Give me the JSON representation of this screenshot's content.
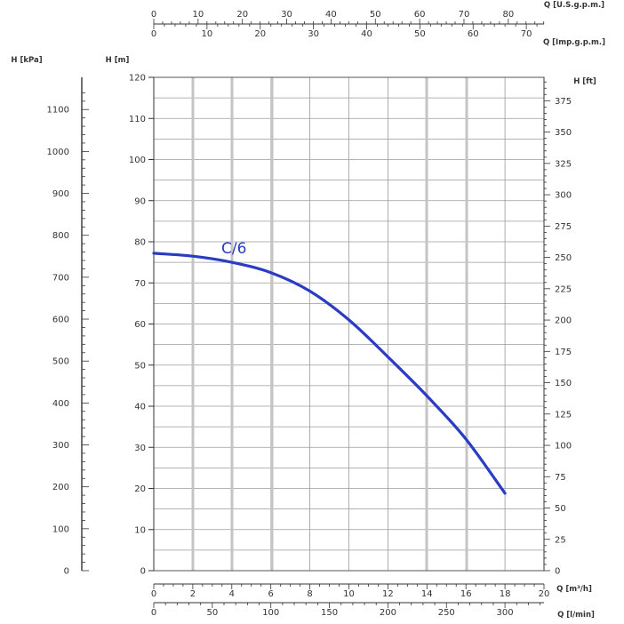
{
  "chart_data": {
    "type": "line",
    "x": [
      0,
      2,
      4,
      6,
      8,
      10,
      12,
      14,
      16,
      18
    ],
    "series": [
      {
        "name": "C/6",
        "values": [
          77.2,
          76.5,
          75.0,
          72.5,
          68.0,
          61.0,
          52.0,
          42.5,
          32.0,
          18.8
        ],
        "color": "#2a3bc4"
      }
    ],
    "xlim": [
      0,
      20
    ],
    "ylim": [
      0,
      120
    ],
    "grid": true,
    "axes": {
      "x_bottom": {
        "label": "Q [m³/h]",
        "range": [
          0,
          20
        ],
        "ticks": [
          "0",
          "2",
          "4",
          "6",
          "8",
          "10",
          "12",
          "14",
          "16",
          "18",
          "20"
        ]
      },
      "x_bottom2": {
        "label": "Q [l/min]",
        "ticks": [
          "0",
          "50",
          "100",
          "150",
          "200",
          "250",
          "300"
        ]
      },
      "x_top1": {
        "label": "Q [U.S.g.p.m.]",
        "ticks": [
          "0",
          "10",
          "20",
          "30",
          "40",
          "50",
          "60",
          "70",
          "80"
        ]
      },
      "x_top2": {
        "label": "Q [Imp.g.p.m.]",
        "ticks": [
          "0",
          "10",
          "20",
          "30",
          "40",
          "50",
          "60",
          "70"
        ]
      },
      "y_left_m": {
        "label": "H [m]",
        "range": [
          0,
          120
        ],
        "ticks": [
          "0",
          "10",
          "20",
          "30",
          "40",
          "50",
          "60",
          "70",
          "80",
          "90",
          "100",
          "110",
          "120"
        ]
      },
      "y_left_kpa": {
        "label": "H [kPa]",
        "ticks": [
          "0",
          "100",
          "200",
          "300",
          "400",
          "500",
          "600",
          "700",
          "800",
          "900",
          "1000",
          "1100"
        ]
      },
      "y_right_ft": {
        "label": "H [ft]",
        "ticks": [
          "0",
          "25",
          "50",
          "75",
          "100",
          "125",
          "150",
          "175",
          "200",
          "225",
          "250",
          "275",
          "300",
          "325",
          "350",
          "375"
        ]
      }
    }
  }
}
